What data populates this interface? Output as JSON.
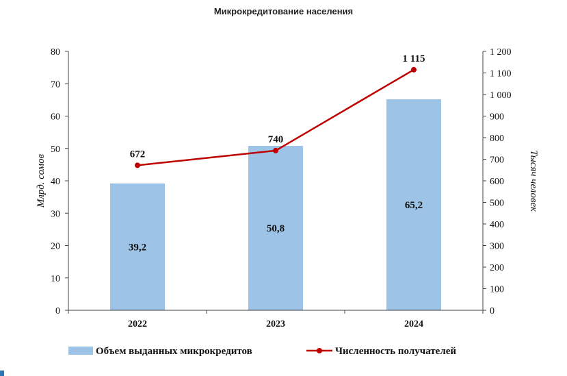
{
  "chart_data": {
    "type": "bar",
    "title": "Микрокредитование населения",
    "categories": [
      "2022",
      "2023",
      "2024"
    ],
    "series": [
      {
        "name": "Объем выданных микрокредитов",
        "kind": "bar",
        "axis": "left",
        "values": [
          39.2,
          50.8,
          65.2
        ],
        "labels": [
          "39,2",
          "50,8",
          "65,2"
        ],
        "color": "#9dc3e6"
      },
      {
        "name": "Численность получателей",
        "kind": "line",
        "axis": "right",
        "values": [
          672,
          740,
          1115
        ],
        "labels": [
          "672",
          "740",
          "1 115"
        ],
        "color": "#c00000"
      }
    ],
    "ylabel": "Млрд. сомов",
    "ylabel_right": "Тысяч человек",
    "ylim": [
      0,
      80
    ],
    "ylim_right": [
      0,
      1200
    ],
    "yticks": [
      "0",
      "10",
      "20",
      "30",
      "40",
      "50",
      "60",
      "70",
      "80"
    ],
    "yticks_right": [
      "0",
      "100",
      "200",
      "300",
      "400",
      "500",
      "600",
      "700",
      "800",
      "900",
      "1 000",
      "1 100",
      "1 200"
    ],
    "legend_position": "bottom",
    "grid": false
  },
  "colors": {
    "accent": "#2e75b6"
  }
}
